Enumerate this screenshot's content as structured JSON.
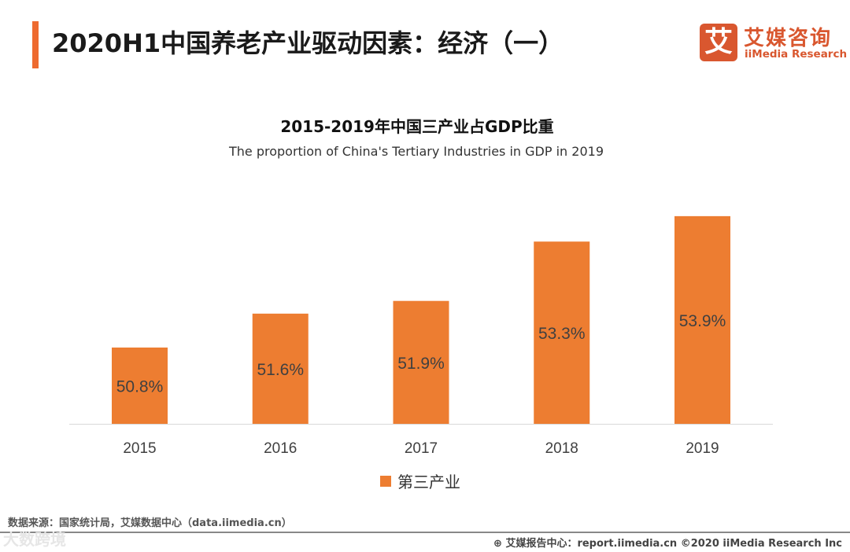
{
  "header": {
    "title": "2020H1中国养老产业驱动因素：经济（一）",
    "logo_cn": "艾媒咨询",
    "logo_en": "iiMedia Research",
    "logo_mark": "艾"
  },
  "chart_data": {
    "type": "bar",
    "title": "2015-2019年中国三产业占GDP比重",
    "subtitle": "The proportion of China's Tertiary Industries in GDP in 2019",
    "categories": [
      "2015",
      "2016",
      "2017",
      "2018",
      "2019"
    ],
    "series": [
      {
        "name": "第三产业",
        "values": [
          50.8,
          51.6,
          51.9,
          53.3,
          53.9
        ],
        "labels": [
          "50.8%",
          "51.6%",
          "51.9%",
          "53.3%",
          "53.9%"
        ]
      }
    ],
    "ylim": [
      49,
      54
    ],
    "grid": false,
    "legend": "bottom",
    "color": "#ed7d31"
  },
  "footer": {
    "source": "数据来源：国家统计局，艾媒数据中心（data.iimedia.cn）",
    "report": "艾媒报告中心：report.iimedia.cn   ©2020  iiMedia Research  Inc",
    "watermark": "大数跨境"
  }
}
